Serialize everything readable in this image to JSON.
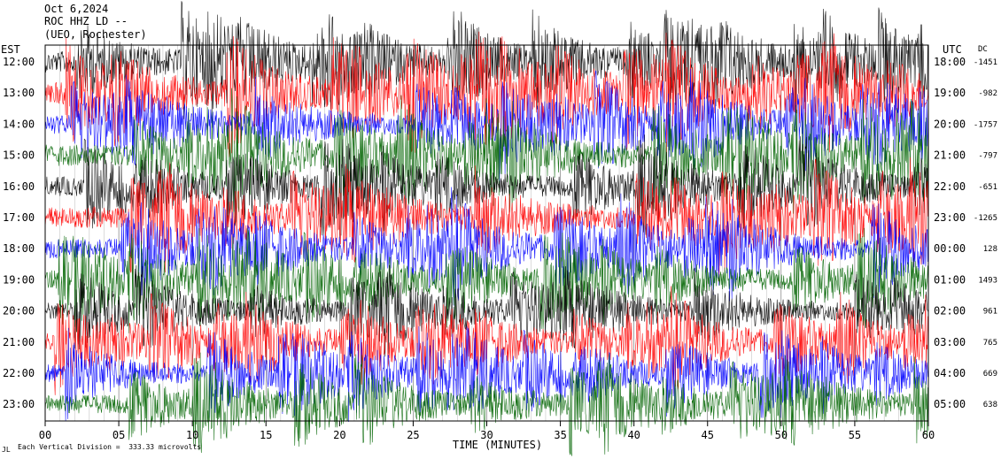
{
  "header": {
    "date": "Oct 6,2024",
    "station": "ROC HHZ LD --",
    "location": "(UEO, Rochester)"
  },
  "footer": {
    "scale_note": "Each Vertical Division =  333.33 microvolts",
    "corner_mark": "JL"
  },
  "chart_data": {
    "type": "line",
    "title": "",
    "xlabel": "TIME (MINUTES)",
    "ylabel_left": "EST",
    "ylabel_right": "UTC",
    "dc_label": "DC",
    "xlim": [
      0,
      60
    ],
    "x_ticks": [
      "00",
      "05",
      "10",
      "15",
      "20",
      "25",
      "30",
      "35",
      "40",
      "45",
      "50",
      "55",
      "60"
    ],
    "rows": [
      {
        "est": "12:00",
        "utc": "18:00",
        "dc": "-1451",
        "color": "#000000",
        "amp": 12
      },
      {
        "est": "13:00",
        "utc": "19:00",
        "dc": "-982",
        "color": "#ff0000",
        "amp": 13
      },
      {
        "est": "14:00",
        "utc": "20:00",
        "dc": "-1757",
        "color": "#0000ff",
        "amp": 11
      },
      {
        "est": "15:00",
        "utc": "21:00",
        "dc": "-797",
        "color": "#006400",
        "amp": 12
      },
      {
        "est": "16:00",
        "utc": "22:00",
        "dc": "-651",
        "color": "#000000",
        "amp": 11
      },
      {
        "est": "17:00",
        "utc": "23:00",
        "dc": "-1265",
        "color": "#ff0000",
        "amp": 12
      },
      {
        "est": "18:00",
        "utc": "00:00",
        "dc": "128",
        "color": "#0000ff",
        "amp": 11
      },
      {
        "est": "19:00",
        "utc": "01:00",
        "dc": "1493",
        "color": "#006400",
        "amp": 11
      },
      {
        "est": "20:00",
        "utc": "02:00",
        "dc": "961",
        "color": "#000000",
        "amp": 10
      },
      {
        "est": "21:00",
        "utc": "03:00",
        "dc": "765",
        "color": "#ff0000",
        "amp": 10
      },
      {
        "est": "22:00",
        "utc": "04:00",
        "dc": "669",
        "color": "#0000ff",
        "amp": 10
      },
      {
        "est": "23:00",
        "utc": "05:00",
        "dc": "638",
        "color": "#006400",
        "amp": 11
      }
    ],
    "grid": true,
    "series_colors": [
      "#000000",
      "#ff0000",
      "#0000ff",
      "#006400"
    ]
  }
}
